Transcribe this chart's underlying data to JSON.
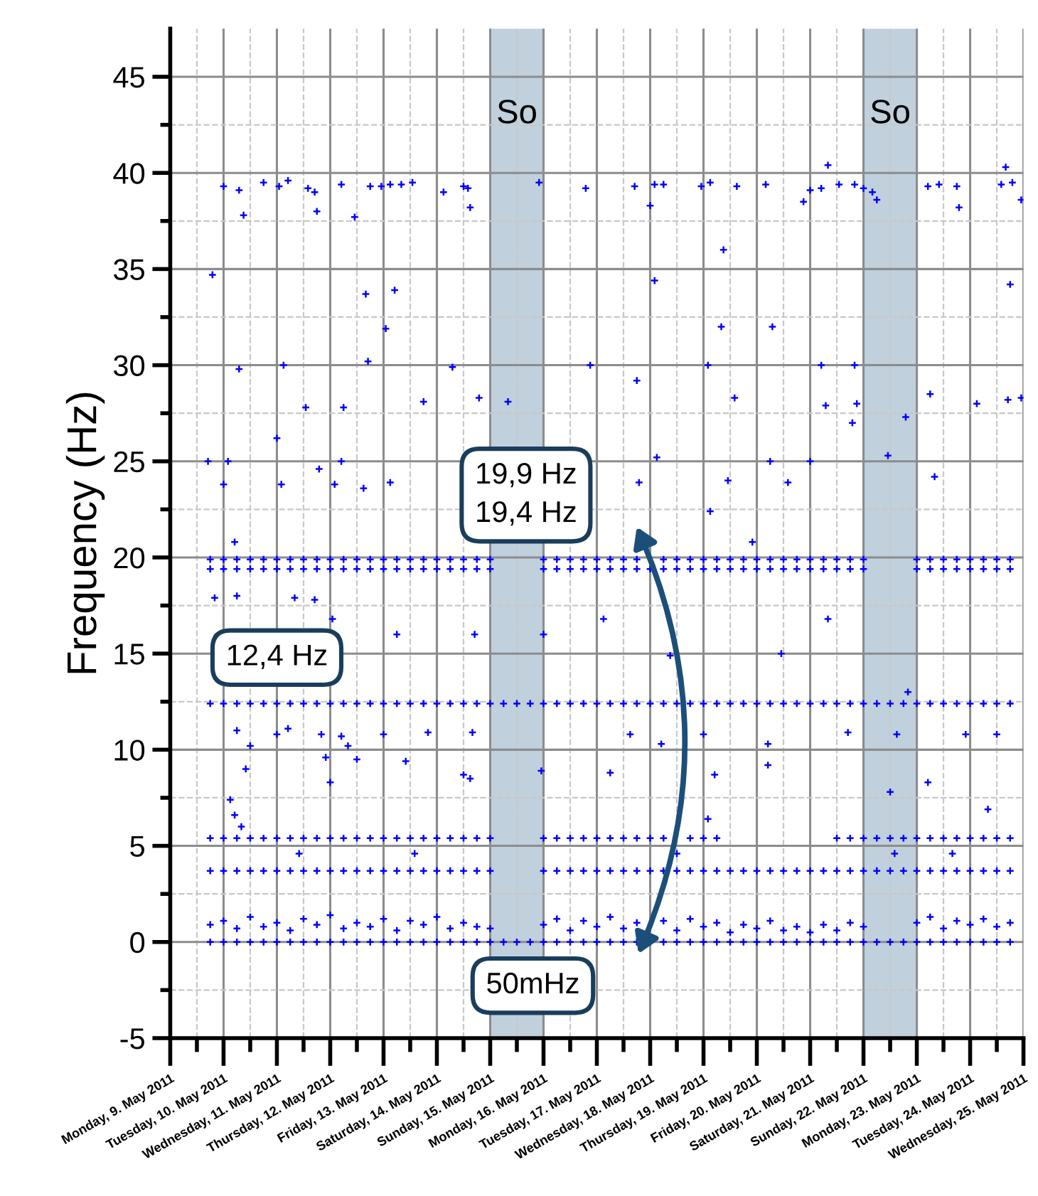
{
  "chart_data": {
    "type": "scatter",
    "ylabel": "Frequency (Hz)",
    "annotations": [
      "19,9 Hz\n19,4 Hz",
      "12,4 Hz",
      "50mHz"
    ],
    "xlim": [
      "2011-05-09",
      "2011-05-25"
    ],
    "xticks": [
      {
        "value": "2011-05-09",
        "label": "Monday, 9. May 2011"
      },
      {
        "value": "2011-05-09T12:00",
        "label": null
      },
      {
        "value": "2011-05-10",
        "label": "Tuesday, 10. May 2011"
      },
      {
        "value": "2011-05-10T12:00",
        "label": null
      },
      {
        "value": "2011-05-11",
        "label": "Wednesday, 11. May 2011"
      },
      {
        "value": "2011-05-11T12:00",
        "label": null
      },
      {
        "value": "2011-05-12",
        "label": "Thursday, 12. May 2011"
      },
      {
        "value": "2011-05-12T12:00",
        "label": null
      },
      {
        "value": "2011-05-13",
        "label": "Friday, 13. May 2011"
      },
      {
        "value": "2011-05-13T12:00",
        "label": null
      },
      {
        "value": "2011-05-14",
        "label": "Saturday, 14. May 2011"
      },
      {
        "value": "2011-05-14T12:00",
        "label": null
      },
      {
        "value": "2011-05-15",
        "label": "Sunday, 15. May 2011"
      },
      {
        "value": "2011-05-15T12:00",
        "label": null
      },
      {
        "value": "2011-05-16",
        "label": "Monday, 16. May 2011"
      },
      {
        "value": "2011-05-16T12:00",
        "label": null
      },
      {
        "value": "2011-05-17",
        "label": "Tuesday, 17. May 2011"
      },
      {
        "value": "2011-05-17T12:00",
        "label": null
      },
      {
        "value": "2011-05-18",
        "label": "Wednesday, 18. May 2011"
      },
      {
        "value": "2011-05-18T12:00",
        "label": null
      },
      {
        "value": "2011-05-19",
        "label": "Thursday, 19. May 2011"
      },
      {
        "value": "2011-05-19T12:00",
        "label": null
      },
      {
        "value": "2011-05-20",
        "label": "Friday, 20. May 2011"
      },
      {
        "value": "2011-05-20T12:00",
        "label": null
      },
      {
        "value": "2011-05-21",
        "label": "Saturday, 21. May 2011"
      },
      {
        "value": "2011-05-21T12:00",
        "label": null
      },
      {
        "value": "2011-05-22",
        "label": "Sunday, 22. May 2011"
      },
      {
        "value": "2011-05-22T12:00",
        "label": null
      },
      {
        "value": "2011-05-23",
        "label": "Monday, 23. May 2011"
      },
      {
        "value": "2011-05-23T12:00",
        "label": null
      },
      {
        "value": "2011-05-24",
        "label": "Tuesday, 24. May 2011"
      },
      {
        "value": "2011-05-24T12:00",
        "label": null
      },
      {
        "value": "2011-05-25",
        "label": "Wednesday, 25. May 2011"
      }
    ],
    "ylim": [
      -5,
      47.5
    ],
    "yticks": [
      -5,
      {
        "value": -2.5,
        "label": null
      },
      0,
      {
        "value": 2.5,
        "label": null
      },
      5,
      {
        "value": 7.5,
        "label": null
      },
      10,
      {
        "value": 12.5,
        "label": null
      },
      15,
      {
        "value": 17.5,
        "label": null
      },
      20,
      {
        "value": 22.5,
        "label": null
      },
      25,
      {
        "value": 27.5,
        "label": null
      },
      30,
      {
        "value": 32.5,
        "label": null
      },
      35,
      {
        "value": 37.5,
        "label": null
      },
      40,
      {
        "value": 42.5,
        "label": null
      },
      45
    ],
    "grid": true,
    "marker": "cross",
    "bands": [
      {
        "axis": "x",
        "from": "2011-05-15",
        "to": "2011-05-16",
        "label": "So",
        "color": "#c0d0dd"
      },
      {
        "axis": "x",
        "from": "2011-05-22",
        "to": "2011-05-23",
        "label": "So",
        "color": "#c0d0dd"
      }
    ],
    "x": [
      "2011-05-09T18:00",
      "2011-05-10T00:00",
      "2011-05-10T06:00",
      "2011-05-10T12:00",
      "2011-05-10T18:00",
      "2011-05-11T00:00",
      "2011-05-11T06:00",
      "2011-05-11T12:00",
      "2011-05-11T18:00",
      "2011-05-12T00:00",
      "2011-05-12T06:00",
      "2011-05-12T12:00",
      "2011-05-12T18:00",
      "2011-05-13T00:00",
      "2011-05-13T06:00",
      "2011-05-13T12:00",
      "2011-05-13T18:00",
      "2011-05-14T00:00",
      "2011-05-14T06:00",
      "2011-05-14T12:00",
      "2011-05-14T18:00",
      "2011-05-15T00:00",
      "2011-05-15T06:00",
      "2011-05-15T12:00",
      "2011-05-15T18:00",
      "2011-05-16T00:00",
      "2011-05-16T06:00",
      "2011-05-16T12:00",
      "2011-05-16T18:00",
      "2011-05-17T00:00",
      "2011-05-17T06:00",
      "2011-05-17T12:00",
      "2011-05-17T18:00",
      "2011-05-18T00:00",
      "2011-05-18T06:00",
      "2011-05-18T12:00",
      "2011-05-18T18:00",
      "2011-05-19T00:00",
      "2011-05-19T06:00",
      "2011-05-19T12:00",
      "2011-05-19T18:00",
      "2011-05-20T00:00",
      "2011-05-20T06:00",
      "2011-05-20T12:00",
      "2011-05-20T18:00",
      "2011-05-21T00:00",
      "2011-05-21T06:00",
      "2011-05-21T12:00",
      "2011-05-21T18:00",
      "2011-05-22T00:00",
      "2011-05-22T06:00",
      "2011-05-22T12:00",
      "2011-05-22T18:00",
      "2011-05-23T00:00",
      "2011-05-23T06:00",
      "2011-05-23T12:00",
      "2011-05-23T18:00",
      "2011-05-24T00:00",
      "2011-05-24T06:00",
      "2011-05-24T12:00",
      "2011-05-24T18:00"
    ],
    "series": [
      {
        "color": "#0000ff",
        "values": [
          12.4,
          12.4,
          12.4,
          12.4,
          12.4,
          12.4,
          12.4,
          12.4,
          12.4,
          12.4,
          12.4,
          12.4,
          12.4,
          12.4,
          12.4,
          12.4,
          12.4,
          12.4,
          12.4,
          12.4,
          12.4,
          12.4,
          12.4,
          12.4,
          12.4,
          12.4,
          12.4,
          12.4,
          12.4,
          12.4,
          12.4,
          12.4,
          12.4,
          12.4,
          12.4,
          12.4,
          12.4,
          12.4,
          12.4,
          12.4,
          12.4,
          12.4,
          12.4,
          12.4,
          12.4,
          12.4,
          12.4,
          12.4,
          12.4,
          12.4,
          12.4,
          12.4,
          12.4,
          12.4,
          12.4,
          12.4,
          12.4,
          12.4,
          12.4,
          12.4,
          12.4
        ]
      },
      {
        "color": "#0000ff",
        "values": [
          0,
          0,
          0,
          0,
          0,
          0,
          0,
          0,
          0,
          0,
          0,
          0,
          0,
          0,
          0,
          0,
          0,
          0,
          0,
          0,
          0,
          0,
          0,
          0,
          0,
          0,
          0,
          0,
          0,
          0,
          0,
          0,
          0,
          0,
          0,
          0,
          0,
          0,
          0,
          0,
          0,
          0,
          0,
          0,
          0,
          0,
          0,
          0,
          0,
          0,
          0,
          0,
          0,
          0,
          0,
          0,
          0,
          0,
          0,
          0,
          0
        ]
      },
      {
        "color": "#0000ff",
        "values": [
          0.9,
          1.1,
          0.7,
          1.3,
          0.8,
          1.0,
          0.6,
          1.2,
          0.9,
          1.4,
          0.7,
          1.0,
          0.8,
          1.2,
          0.6,
          1.1,
          0.9,
          1.3,
          0.7,
          1.0,
          0.8,
          0.7,
          null,
          null,
          null,
          0.9,
          1.2,
          0.6,
          1.1,
          0.8,
          1.3,
          0.7,
          1.0,
          null,
          1.1,
          0.6,
          1.2,
          0.8,
          1.0,
          0.5,
          0.9,
          0.7,
          1.1,
          0.6,
          0.8,
          0.5,
          0.9,
          0.6,
          1.0,
          0.8,
          null,
          null,
          null,
          1.0,
          1.3,
          0.7,
          1.1,
          0.9,
          1.2,
          0.8,
          1.0
        ]
      },
      {
        "color": "#0000ff",
        "values": [
          19.9,
          19.9,
          19.9,
          19.9,
          19.9,
          19.9,
          19.9,
          19.9,
          19.9,
          19.9,
          19.9,
          19.9,
          19.9,
          19.9,
          19.9,
          19.9,
          19.9,
          19.9,
          19.9,
          19.9,
          19.9,
          19.9,
          null,
          null,
          null,
          19.9,
          19.9,
          19.9,
          19.9,
          19.9,
          19.9,
          19.9,
          19.9,
          null,
          19.9,
          19.9,
          19.9,
          19.9,
          19.9,
          19.9,
          19.9,
          19.9,
          19.9,
          19.9,
          19.9,
          19.9,
          19.9,
          19.9,
          19.9,
          19.9,
          null,
          null,
          null,
          19.9,
          19.9,
          19.9,
          19.9,
          19.9,
          19.9,
          19.9,
          19.9
        ]
      },
      {
        "color": "#0000ff",
        "values": [
          19.4,
          19.4,
          19.4,
          19.4,
          19.4,
          19.4,
          19.4,
          19.4,
          19.4,
          19.4,
          19.4,
          19.4,
          19.4,
          19.4,
          19.4,
          19.4,
          19.4,
          19.4,
          19.4,
          19.4,
          19.4,
          19.4,
          null,
          null,
          null,
          19.4,
          19.4,
          19.4,
          19.4,
          19.4,
          19.4,
          19.4,
          19.4,
          19.4,
          19.4,
          19.4,
          19.4,
          19.4,
          19.4,
          19.4,
          19.4,
          19.4,
          19.4,
          19.4,
          19.4,
          19.4,
          19.4,
          19.4,
          19.4,
          19.4,
          null,
          null,
          null,
          19.4,
          19.4,
          19.4,
          19.4,
          19.4,
          19.4,
          19.4,
          19.4
        ]
      },
      {
        "color": "#0000ff",
        "values": [
          5.4,
          5.4,
          5.4,
          5.4,
          5.4,
          5.4,
          5.4,
          5.4,
          5.4,
          5.4,
          5.4,
          5.4,
          5.4,
          5.4,
          5.4,
          5.4,
          5.4,
          5.4,
          5.4,
          5.4,
          5.4,
          5.4,
          null,
          null,
          null,
          5.4,
          5.4,
          5.4,
          5.4,
          5.4,
          5.4,
          5.4,
          5.4,
          5.4,
          5.4,
          null,
          5.4,
          5.4,
          5.4,
          null,
          null,
          null,
          null,
          null,
          null,
          null,
          null,
          5.4,
          5.4,
          5.4,
          5.4,
          5.4,
          5.4,
          5.4,
          5.4,
          5.4,
          5.4,
          5.4,
          5.4,
          5.4,
          5.4
        ]
      },
      {
        "color": "#0000ff",
        "values": [
          3.7,
          3.7,
          3.7,
          3.7,
          3.7,
          3.7,
          3.7,
          3.7,
          3.7,
          3.7,
          3.7,
          3.7,
          3.7,
          3.7,
          3.7,
          3.7,
          3.7,
          3.7,
          3.7,
          3.7,
          3.7,
          3.7,
          null,
          null,
          null,
          3.7,
          3.7,
          3.7,
          3.7,
          3.7,
          3.7,
          3.7,
          3.7,
          3.7,
          3.7,
          3.7,
          3.7,
          3.7,
          3.7,
          3.7,
          3.7,
          3.7,
          3.7,
          3.7,
          3.7,
          3.7,
          3.7,
          3.7,
          3.7,
          3.7,
          3.7,
          3.7,
          3.7,
          3.7,
          3.7,
          3.7,
          3.7,
          3.7,
          3.7,
          3.7,
          3.7
        ]
      },
      {
        "color": "#0000ff",
        "x": [
          "2011-05-10T00:00",
          "2011-05-10T07:00",
          "2011-05-10T18:00",
          "2011-05-11T01:00",
          "2011-05-11T05:00",
          "2011-05-11T14:00",
          "2011-05-11T17:00",
          "2011-05-12T05:00",
          "2011-05-12T18:00",
          "2011-05-12T23:00",
          "2011-05-13T03:00",
          "2011-05-13T08:00",
          "2011-05-13T13:00",
          "2011-05-14T03:00",
          "2011-05-14T12:00",
          "2011-05-14T14:00",
          "2011-05-15T22:00",
          "2011-05-16T19:00",
          "2011-05-17T17:00",
          "2011-05-18T02:00",
          "2011-05-18T06:00",
          "2011-05-18T23:00",
          "2011-05-19T03:00",
          "2011-05-19T15:00",
          "2011-05-20T04:00",
          "2011-05-21T00:00",
          "2011-05-21T05:00",
          "2011-05-21T13:00",
          "2011-05-21T20:00",
          "2011-05-22T00:00",
          "2011-05-22T04:00",
          "2011-05-23T05:00",
          "2011-05-23T10:00",
          "2011-05-23T18:00",
          "2011-05-24T14:00",
          "2011-05-24T19:00",
          "2011-05-10T09:00",
          "2011-05-11T18:00",
          "2011-05-12T11:00",
          "2011-05-14T15:00",
          "2011-05-18T00:00",
          "2011-05-20T21:00",
          "2011-05-22T06:00",
          "2011-05-23T19:00",
          "2011-05-24T16:00",
          "2011-05-24T23:00",
          "2011-05-21T08:00"
        ],
        "values": [
          39.3,
          39.1,
          39.5,
          39.3,
          39.6,
          39.2,
          39.0,
          39.4,
          39.3,
          39.3,
          39.4,
          39.4,
          39.5,
          39.0,
          39.3,
          39.2,
          39.5,
          39.2,
          39.3,
          39.4,
          39.4,
          39.3,
          39.5,
          39.3,
          39.4,
          39.1,
          39.2,
          39.4,
          39.4,
          39.2,
          39.0,
          39.3,
          39.4,
          39.3,
          39.4,
          39.5,
          37.8,
          38.0,
          37.7,
          38.2,
          38.3,
          38.5,
          38.6,
          38.2,
          40.3,
          38.6,
          40.4
        ]
      },
      {
        "color": "#0000ff",
        "x": [
          "2011-05-09T19:00",
          "2011-05-12T16:00",
          "2011-05-13T05:00",
          "2011-05-13T01:00",
          "2011-05-10T07:00",
          "2011-05-11T03:00",
          "2011-05-12T17:00",
          "2011-05-13T18:00",
          "2011-05-14T07:00",
          "2011-05-14T19:00",
          "2011-05-15T08:00",
          "2011-05-11T13:00",
          "2011-05-12T06:00",
          "2011-05-11T00:00",
          "2011-05-09T17:00",
          "2011-05-10T02:00",
          "2011-05-11T19:00",
          "2011-05-12T05:00",
          "2011-05-10T00:00",
          "2011-05-11T02:00",
          "2011-05-12T02:00",
          "2011-05-13T03:00",
          "2011-05-12T15:00",
          "2011-05-10T05:00",
          "2011-05-19T08:00",
          "2011-05-20T07:00",
          "2011-05-16T21:00",
          "2011-05-21T05:00",
          "2011-05-21T20:00",
          "2011-05-21T21:00",
          "2011-05-21T19:00",
          "2011-05-18T02:00",
          "2011-05-24T18:00",
          "2011-05-19T09:00",
          "2011-05-19T02:00",
          "2011-05-17T18:00",
          "2011-05-19T14:00",
          "2011-05-24T03:00",
          "2011-05-24T17:00",
          "2011-05-24T23:00",
          "2011-05-23T06:00",
          "2011-05-22T19:00",
          "2011-05-21T07:00",
          "2011-05-20T06:00",
          "2011-05-21T00:00",
          "2011-05-18T03:00",
          "2011-05-22T11:00",
          "2011-05-23T08:00",
          "2011-05-19T11:00",
          "2011-05-20T14:00",
          "2011-05-17T19:00",
          "2011-05-19T03:00",
          "2011-05-19T22:00"
        ],
        "values": [
          34.7,
          33.7,
          33.9,
          31.9,
          29.8,
          30.0,
          30.2,
          28.1,
          29.9,
          28.3,
          28.1,
          27.8,
          27.8,
          26.2,
          25.0,
          25.0,
          24.6,
          25.0,
          23.8,
          23.8,
          23.8,
          23.9,
          23.6,
          20.8,
          32.0,
          32.0,
          30.0,
          30.0,
          30.0,
          28.0,
          27.0,
          34.4,
          34.2,
          36.0,
          30.0,
          29.2,
          28.3,
          28.0,
          28.2,
          28.3,
          28.5,
          27.3,
          27.9,
          25.0,
          25.0,
          25.2,
          25.3,
          24.2,
          24.0,
          23.9,
          23.9,
          22.4,
          20.8
        ]
      },
      {
        "color": "#0000ff",
        "x": [
          "2011-05-10T06:00",
          "2011-05-10T12:00",
          "2011-05-10T10:00",
          "2011-05-10T03:00",
          "2011-05-10T05:00",
          "2011-05-10T08:00",
          "2011-05-11T00:00",
          "2011-05-11T05:00",
          "2011-05-11T20:00",
          "2011-05-11T22:00",
          "2011-05-12T05:00",
          "2011-05-12T08:00",
          "2011-05-12T12:00",
          "2011-05-12T00:00",
          "2011-05-13T00:00",
          "2011-05-13T10:00",
          "2011-05-13T20:00",
          "2011-05-14T12:00",
          "2011-05-14T15:00",
          "2011-05-14T16:00",
          "2011-05-13T06:00",
          "2011-05-14T17:00",
          "2011-05-16T00:00",
          "2011-05-15T23:00",
          "2011-05-09T20:00",
          "2011-05-10T06:00",
          "2011-05-11T08:00",
          "2011-05-11T17:00",
          "2011-05-12T01:00",
          "2011-05-17T03:00",
          "2011-05-18T09:00",
          "2011-05-20T11:00",
          "2011-05-21T08:00",
          "2011-05-22T20:00",
          "2011-05-23T05:00",
          "2011-05-17T06:00",
          "2011-05-22T12:00",
          "2011-05-17T15:00",
          "2011-05-18T05:00",
          "2011-05-19T00:00",
          "2011-05-20T05:00",
          "2011-05-21T17:00",
          "2011-05-22T15:00",
          "2011-05-23T22:00",
          "2011-05-24T12:00",
          "2011-05-19T05:00",
          "2011-05-20T05:00",
          "2011-05-24T08:00",
          "2011-05-19T02:00",
          "2011-05-11T10:00",
          "2011-05-13T14:00",
          "2011-05-18T12:00",
          "2011-05-22T14:00",
          "2011-05-23T16:00"
        ],
        "values": [
          11.0,
          10.2,
          9.0,
          7.4,
          6.6,
          6.0,
          10.8,
          11.1,
          10.8,
          9.6,
          10.7,
          10.2,
          9.5,
          8.3,
          10.8,
          9.4,
          10.9,
          8.7,
          8.5,
          10.9,
          16.0,
          16.0,
          16.0,
          8.9,
          17.9,
          18.0,
          17.9,
          17.8,
          16.8,
          16.8,
          14.9,
          15.0,
          16.8,
          13.0,
          8.3,
          8.8,
          7.8,
          10.8,
          10.3,
          10.8,
          10.3,
          10.9,
          10.8,
          10.8,
          10.8,
          8.7,
          9.2,
          6.9,
          6.4,
          4.6,
          4.6,
          4.6,
          4.6,
          4.6
        ]
      }
    ]
  }
}
